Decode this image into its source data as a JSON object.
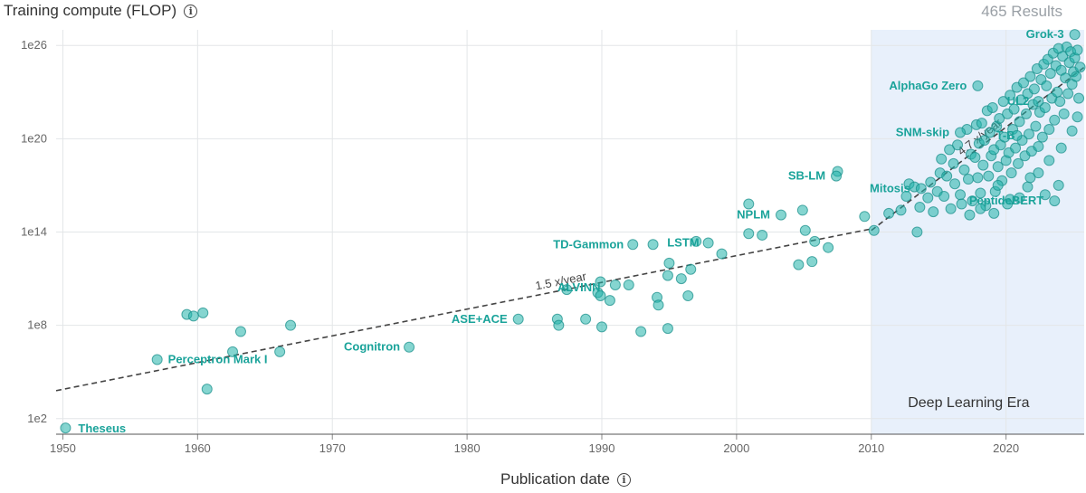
{
  "header": {
    "ylabel": "Training compute (FLOP)",
    "results": "465 Results"
  },
  "xaxis": {
    "label": "Publication date"
  },
  "chart_data": {
    "type": "scatter",
    "title": "",
    "ylabel": "Training compute (FLOP)",
    "xlabel": "Publication date",
    "yscale": "log",
    "xlim": [
      1949.5,
      2025.8
    ],
    "ylim_exp": [
      1,
      27
    ],
    "yticks": [
      {
        "exp": 2,
        "label": "1e2"
      },
      {
        "exp": 8,
        "label": "1e8"
      },
      {
        "exp": 14,
        "label": "1e14"
      },
      {
        "exp": 20,
        "label": "1e20"
      },
      {
        "exp": 26,
        "label": "1e26"
      }
    ],
    "xticks": [
      1950,
      1960,
      1970,
      1980,
      1990,
      2000,
      2010,
      2020
    ],
    "era": {
      "label": "Deep Learning Era",
      "start": 2010,
      "end": 2025.8
    },
    "trends": [
      {
        "label": "1.5 x/year",
        "from": [
          1949.5,
          3.8
        ],
        "to": [
          2010,
          14.2
        ]
      },
      {
        "label": "4.7 x/year",
        "from": [
          2010,
          14.1
        ],
        "to": [
          2025.8,
          24.6
        ]
      }
    ],
    "labeled_points": [
      {
        "name": "Theseus",
        "year": 1950.2,
        "exp": 1.4
      },
      {
        "name": "Perceptron Mark I",
        "year": 1957.0,
        "exp": 5.8
      },
      {
        "name": "Cognitron",
        "year": 1975.7,
        "exp": 6.6
      },
      {
        "name": "ASE+ACE",
        "year": 1983.8,
        "exp": 8.4
      },
      {
        "name": "ALVINN",
        "year": 1989.9,
        "exp": 9.9
      },
      {
        "name": "TD-Gammon",
        "year": 1992.3,
        "exp": 13.2
      },
      {
        "name": "LSTM",
        "year": 1997.9,
        "exp": 13.3
      },
      {
        "name": "NPLM",
        "year": 2003.3,
        "exp": 15.1
      },
      {
        "name": "SB-LM",
        "year": 2007.4,
        "exp": 17.6
      },
      {
        "name": "Mitosis",
        "year": 2013.7,
        "exp": 16.8
      },
      {
        "name": "SNM-skip",
        "year": 2016.6,
        "exp": 20.4
      },
      {
        "name": "AlphaGo Zero",
        "year": 2017.9,
        "exp": 23.4
      },
      {
        "name": "UL2",
        "year": 2022.4,
        "exp": 22.4
      },
      {
        "name": "T-B",
        "year": 2020.8,
        "exp": 20.2
      },
      {
        "name": "PeptideBERT",
        "year": 2023.6,
        "exp": 16.0
      },
      {
        "name": "Grok-3",
        "year": 2025.1,
        "exp": 26.7
      }
    ],
    "other_points": [
      [
        1959.2,
        8.7
      ],
      [
        1959.7,
        8.6
      ],
      [
        1960.4,
        8.8
      ],
      [
        1962.6,
        6.3
      ],
      [
        1963.2,
        7.6
      ],
      [
        1960.7,
        3.9
      ],
      [
        1966.1,
        6.3
      ],
      [
        1966.9,
        8.0
      ],
      [
        1986.7,
        8.4
      ],
      [
        1986.8,
        8.0
      ],
      [
        1988.8,
        8.4
      ],
      [
        1987.4,
        10.3
      ],
      [
        1989.7,
        10.1
      ],
      [
        1989.9,
        10.8
      ],
      [
        1990.0,
        7.9
      ],
      [
        1990.6,
        9.6
      ],
      [
        1991.0,
        10.6
      ],
      [
        1992.0,
        10.6
      ],
      [
        1992.9,
        7.6
      ],
      [
        1993.8,
        13.2
      ],
      [
        1994.1,
        9.8
      ],
      [
        1994.2,
        9.3
      ],
      [
        1994.9,
        11.2
      ],
      [
        1994.9,
        7.8
      ],
      [
        1995.0,
        12.0
      ],
      [
        1995.9,
        11.0
      ],
      [
        1996.4,
        9.9
      ],
      [
        1996.6,
        11.6
      ],
      [
        1997.0,
        13.4
      ],
      [
        1998.9,
        12.6
      ],
      [
        2000.9,
        13.9
      ],
      [
        2000.9,
        15.8
      ],
      [
        2001.9,
        13.8
      ],
      [
        2004.6,
        11.9
      ],
      [
        2004.9,
        15.4
      ],
      [
        2005.1,
        14.1
      ],
      [
        2005.8,
        13.4
      ],
      [
        2005.6,
        12.1
      ],
      [
        2006.8,
        13.0
      ],
      [
        2007.5,
        17.9
      ],
      [
        2009.5,
        15.0
      ],
      [
        2010.2,
        14.1
      ],
      [
        2011.3,
        15.2
      ],
      [
        2012.2,
        15.4
      ],
      [
        2012.6,
        16.3
      ],
      [
        2012.8,
        17.1
      ],
      [
        2013.2,
        16.9
      ],
      [
        2013.4,
        14.0
      ],
      [
        2013.6,
        15.6
      ],
      [
        2014.2,
        16.2
      ],
      [
        2014.4,
        17.2
      ],
      [
        2014.6,
        15.3
      ],
      [
        2014.9,
        16.6
      ],
      [
        2015.1,
        17.8
      ],
      [
        2015.2,
        18.7
      ],
      [
        2015.4,
        16.3
      ],
      [
        2015.6,
        17.6
      ],
      [
        2015.8,
        19.3
      ],
      [
        2015.9,
        15.5
      ],
      [
        2016.1,
        18.4
      ],
      [
        2016.2,
        17.1
      ],
      [
        2016.4,
        19.6
      ],
      [
        2016.6,
        16.4
      ],
      [
        2016.7,
        15.8
      ],
      [
        2016.9,
        18.0
      ],
      [
        2017.1,
        20.6
      ],
      [
        2017.2,
        17.4
      ],
      [
        2017.4,
        19.0
      ],
      [
        2017.5,
        16.0
      ],
      [
        2017.7,
        18.8
      ],
      [
        2017.8,
        20.9
      ],
      [
        2017.9,
        17.5
      ],
      [
        2018.0,
        19.7
      ],
      [
        2018.1,
        16.5
      ],
      [
        2018.2,
        21.0
      ],
      [
        2018.3,
        18.3
      ],
      [
        2018.4,
        19.9
      ],
      [
        2018.5,
        15.7
      ],
      [
        2018.6,
        21.8
      ],
      [
        2018.7,
        17.6
      ],
      [
        2018.8,
        20.4
      ],
      [
        2018.9,
        18.9
      ],
      [
        2019.0,
        22.0
      ],
      [
        2019.1,
        19.3
      ],
      [
        2019.2,
        16.6
      ],
      [
        2019.3,
        20.8
      ],
      [
        2019.4,
        18.2
      ],
      [
        2019.5,
        21.3
      ],
      [
        2019.6,
        19.6
      ],
      [
        2019.7,
        17.3
      ],
      [
        2019.8,
        22.4
      ],
      [
        2019.9,
        20.1
      ],
      [
        2020.0,
        18.6
      ],
      [
        2020.1,
        21.6
      ],
      [
        2020.2,
        19.1
      ],
      [
        2020.3,
        22.8
      ],
      [
        2020.4,
        17.8
      ],
      [
        2020.5,
        20.6
      ],
      [
        2020.6,
        21.9
      ],
      [
        2020.7,
        19.4
      ],
      [
        2020.8,
        23.3
      ],
      [
        2020.9,
        18.4
      ],
      [
        2021.0,
        21.1
      ],
      [
        2021.1,
        22.5
      ],
      [
        2021.2,
        19.9
      ],
      [
        2021.3,
        23.6
      ],
      [
        2021.4,
        18.9
      ],
      [
        2021.5,
        21.6
      ],
      [
        2021.6,
        22.9
      ],
      [
        2021.7,
        20.3
      ],
      [
        2021.8,
        24.0
      ],
      [
        2021.9,
        19.2
      ],
      [
        2022.0,
        22.2
      ],
      [
        2022.1,
        23.2
      ],
      [
        2022.2,
        20.8
      ],
      [
        2022.3,
        24.5
      ],
      [
        2022.4,
        19.5
      ],
      [
        2022.5,
        21.7
      ],
      [
        2022.6,
        23.8
      ],
      [
        2022.7,
        20.1
      ],
      [
        2022.8,
        24.8
      ],
      [
        2022.9,
        22.0
      ],
      [
        2023.0,
        23.4
      ],
      [
        2023.1,
        25.1
      ],
      [
        2023.2,
        20.6
      ],
      [
        2023.3,
        24.2
      ],
      [
        2023.4,
        22.6
      ],
      [
        2023.5,
        25.5
      ],
      [
        2023.6,
        21.2
      ],
      [
        2023.7,
        24.7
      ],
      [
        2023.8,
        23.0
      ],
      [
        2023.9,
        25.8
      ],
      [
        2024.0,
        22.4
      ],
      [
        2024.1,
        24.4
      ],
      [
        2024.2,
        25.3
      ],
      [
        2024.3,
        21.6
      ],
      [
        2024.4,
        23.9
      ],
      [
        2024.5,
        25.9
      ],
      [
        2024.6,
        22.9
      ],
      [
        2024.7,
        24.9
      ],
      [
        2024.8,
        25.6
      ],
      [
        2024.9,
        23.5
      ],
      [
        2025.0,
        24.3
      ],
      [
        2025.1,
        25.2
      ],
      [
        2025.2,
        24.0
      ],
      [
        2025.3,
        25.7
      ],
      [
        2025.4,
        22.6
      ],
      [
        2025.5,
        24.6
      ],
      [
        2019.4,
        17.0
      ],
      [
        2020.3,
        16.1
      ],
      [
        2021.6,
        16.9
      ],
      [
        2022.4,
        17.8
      ],
      [
        2023.2,
        18.6
      ],
      [
        2024.1,
        19.4
      ],
      [
        2024.9,
        20.5
      ],
      [
        2025.3,
        21.4
      ],
      [
        2018.1,
        15.5
      ],
      [
        2019.1,
        15.2
      ],
      [
        2020.1,
        15.8
      ],
      [
        2021.0,
        16.2
      ],
      [
        2017.3,
        15.1
      ],
      [
        2023.9,
        17.0
      ],
      [
        2022.9,
        16.4
      ],
      [
        2021.8,
        17.5
      ]
    ]
  }
}
